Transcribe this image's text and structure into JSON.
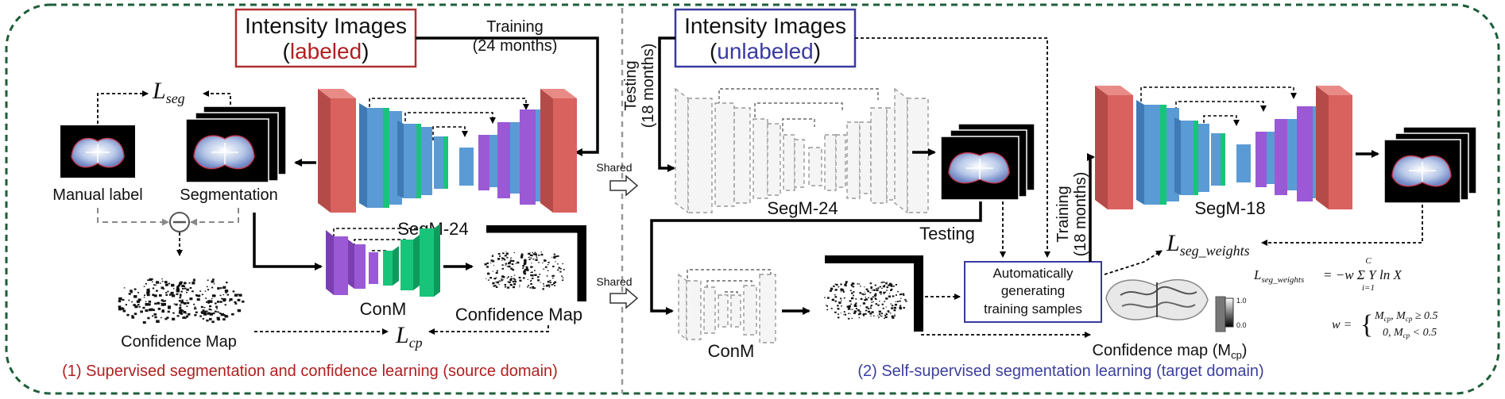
{
  "left_panel": {
    "input_title": "Intensity Images",
    "input_subtitle_open": "(",
    "input_subtitle_word": "labeled",
    "input_subtitle_close": ")",
    "training_line1": "Training",
    "training_line2": "(24 months)",
    "loss_seg_main": "L",
    "loss_seg_sub": "seg",
    "manual_label": "Manual label",
    "segmentation": "Segmentation",
    "network_name": "SegM-24",
    "conm_name": "ConM",
    "confidence_map_left": "Confidence Map",
    "confidence_map_mid": "Confidence Map",
    "loss_cp_main": "L",
    "loss_cp_sub": "cp",
    "caption": "(1) Supervised segmentation and confidence learning (source domain)"
  },
  "shared_labels": [
    "Shared",
    "Shared"
  ],
  "right_panel": {
    "input_title": "Intensity Images",
    "input_subtitle_open": "(",
    "input_subtitle_word": "unlabeled",
    "input_subtitle_close": ")",
    "testing_vertical_1": "Testing",
    "testing_vertical_2": "(18 months)",
    "segm24_name": "SegM-24",
    "testing_label": "Testing",
    "conm_name": "ConM",
    "auto_box_line1": "Automatically",
    "auto_box_line2": "generating",
    "auto_box_line3": "training samples",
    "training_vertical_1": "Training",
    "training_vertical_2": "(18 months)",
    "segm18_name": "SegM-18",
    "loss_weights_main": "L",
    "loss_weights_sub": "seg_weights",
    "formula_lhs": "L",
    "formula_lhs_sub": "seg_weights",
    "formula_rhs": "= −w Σ Y",
    "formula_rhs_tail": " ln X",
    "formula_sum_top": "C",
    "formula_sum_bottom": "i=1",
    "weight_formula_lhs": "w =",
    "weight_case1": "M",
    "weight_case1_tail": ", M",
    "weight_case1_end": " ≥ 0.5",
    "weight_case2": "0, M",
    "weight_case2_end": " < 0.5",
    "colorbar_top": "1.0",
    "colorbar_bottom": "0.0",
    "confidence_map_label": "Confidence map (M",
    "confidence_map_sub": "cp",
    "confidence_map_close": ")",
    "caption": "(2) Self-supervised segmentation learning (target domain)"
  },
  "colors": {
    "frame_border": "#1d5e3a",
    "caption_left": "#b02020",
    "caption_right": "#3b3f9e",
    "labeled_box": "#b03030",
    "unlabeled_box": "#3a3aa0",
    "layer_red": "#d9625e",
    "layer_blue": "#5b9bd5",
    "layer_green": "#18c47a",
    "layer_purple": "#9b59d6"
  }
}
